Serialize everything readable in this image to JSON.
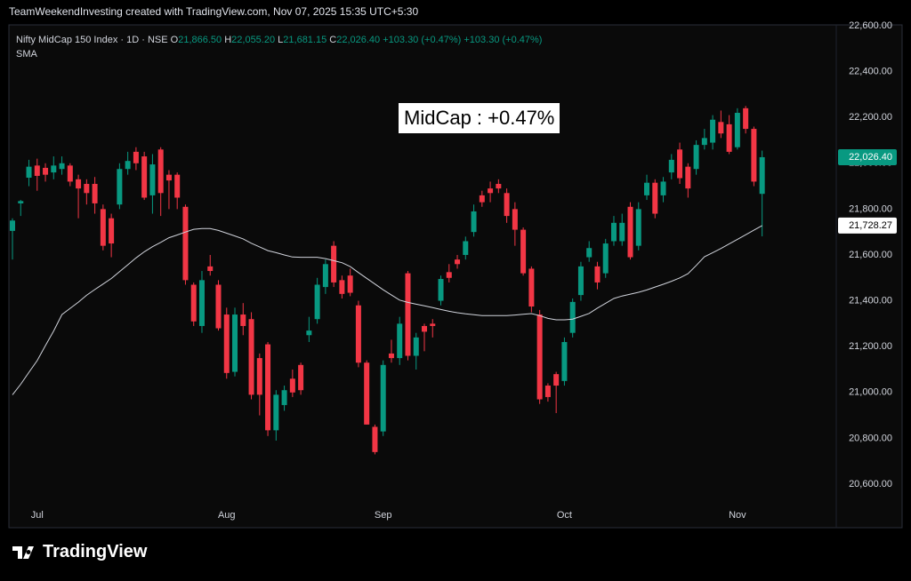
{
  "header": "TeamWeekendInvesting created with TradingView.com, Nov 07, 2025 15:35 UTC+5:30",
  "footer_logo": "TradingView",
  "chart_data": {
    "type": "candlestick",
    "annotation": "MidCap : +0.47%",
    "legend_values": [
      {
        "key": "O",
        "value": "21,866.50"
      },
      {
        "key": "H",
        "value": "22,055.20"
      },
      {
        "key": "L",
        "value": "21,681.15"
      },
      {
        "key": "C",
        "value": "22,026.40"
      }
    ],
    "changes": [
      "+103.30 (+0.47%)",
      "+103.30 (+0.47%)"
    ],
    "categories": [
      null,
      null,
      null,
      "Jul",
      null,
      null,
      null,
      null,
      null,
      null,
      null,
      null,
      null,
      null,
      null,
      null,
      null,
      null,
      null,
      null,
      null,
      null,
      null,
      null,
      null,
      null,
      "Aug",
      null,
      null,
      null,
      null,
      null,
      null,
      null,
      null,
      null,
      null,
      null,
      null,
      null,
      null,
      null,
      null,
      null,
      null,
      "Sep",
      null,
      null,
      null,
      null,
      null,
      null,
      null,
      null,
      null,
      null,
      null,
      null,
      null,
      null,
      null,
      null,
      null,
      null,
      null,
      null,
      null,
      "Oct",
      null,
      null,
      null,
      null,
      null,
      null,
      null,
      null,
      null,
      null,
      null,
      null,
      null,
      null,
      null,
      null,
      null,
      null,
      null,
      null,
      "Nov",
      null,
      null,
      null
    ],
    "series": [
      {
        "name": "Nifty MidCap 150 Index · 1D · NSE",
        "type": "candlestick",
        "up_color": "#089981",
        "down_color": "#f23645",
        "open": [
          21705,
          21825,
          21937,
          21990,
          21980,
          21960,
          21975,
          21990,
          21930,
          21910,
          21910,
          21800,
          21760,
          21820,
          21975,
          22050,
          22030,
          21860,
          22060,
          21950,
          21950,
          21810,
          21470,
          21290,
          21550,
          21470,
          21340,
          21090,
          21340,
          21320,
          21150,
          21210,
          20835,
          20945,
          21060,
          21120,
          21250,
          21320,
          21460,
          21640,
          21490,
          21510,
          21380,
          21130,
          20850,
          20830,
          21170,
          21150,
          21520,
          21160,
          21290,
          21300,
          21400,
          21525,
          21580,
          21600,
          21700,
          21860,
          21890,
          21910,
          21870,
          21800,
          21710,
          21540,
          21340,
          21030,
          21080,
          21050,
          21260,
          21425,
          21590,
          21550,
          21520,
          21660,
          21660,
          21810,
          21640,
          21860,
          21915,
          21860,
          21960,
          22060,
          21985,
          21975,
          22080,
          22090,
          22180,
          22170,
          22070,
          22240,
          22150,
          21866.5
        ],
        "high": [
          21760,
          21840,
          22015,
          22020,
          22000,
          22030,
          22030,
          22000,
          21950,
          21930,
          21940,
          21820,
          21780,
          22000,
          22050,
          22070,
          22050,
          22040,
          22070,
          21970,
          21960,
          21820,
          21480,
          21530,
          21600,
          21490,
          21370,
          21370,
          21390,
          21350,
          21170,
          21220,
          21010,
          21030,
          21100,
          21130,
          21330,
          21500,
          21580,
          21660,
          21510,
          21540,
          21400,
          21140,
          20860,
          21140,
          21230,
          21330,
          21530,
          21260,
          21300,
          21320,
          21510,
          21560,
          21600,
          21680,
          21820,
          21880,
          21920,
          21930,
          21890,
          21830,
          21720,
          21550,
          21360,
          21040,
          21090,
          21240,
          21410,
          21570,
          21660,
          21570,
          21670,
          21770,
          21780,
          21830,
          21830,
          21950,
          21930,
          21940,
          22040,
          22090,
          22000,
          22100,
          22150,
          22210,
          22230,
          22210,
          22240,
          22250,
          22160,
          22055.2
        ],
        "low": [
          21580,
          21770,
          21900,
          21880,
          21920,
          21930,
          21950,
          21900,
          21760,
          21820,
          21780,
          21620,
          21590,
          21800,
          21950,
          21970,
          21840,
          21780,
          21770,
          21800,
          21800,
          21470,
          21290,
          21260,
          21510,
          21270,
          21060,
          21070,
          21250,
          20970,
          20900,
          20810,
          20790,
          20920,
          20980,
          20990,
          21220,
          21300,
          21430,
          21460,
          21410,
          21420,
          21110,
          20860,
          20730,
          20810,
          21130,
          21120,
          21140,
          21100,
          21180,
          21240,
          21380,
          21480,
          21540,
          21580,
          21680,
          21810,
          21830,
          21870,
          21740,
          21640,
          21510,
          21350,
          20950,
          20960,
          20910,
          21030,
          21240,
          21400,
          21570,
          21450,
          21500,
          21640,
          21640,
          21580,
          21620,
          21840,
          21760,
          21830,
          21930,
          21910,
          21850,
          21950,
          22060,
          22060,
          22110,
          22040,
          22060,
          22130,
          21900,
          21681.15
        ],
        "close": [
          21750,
          21835,
          21985,
          21945,
          21950,
          21990,
          22000,
          21920,
          21890,
          21870,
          21825,
          21640,
          21650,
          21975,
          22010,
          22000,
          21850,
          21995,
          21870,
          21925,
          21850,
          21490,
          21310,
          21490,
          21530,
          21280,
          21085,
          21340,
          21290,
          20990,
          20990,
          20835,
          20990,
          21010,
          21000,
          21010,
          21270,
          21470,
          21560,
          21480,
          21430,
          21435,
          21130,
          20860,
          20740,
          21120,
          21150,
          21300,
          21160,
          21240,
          21265,
          21290,
          21495,
          21500,
          21560,
          21660,
          21790,
          21830,
          21870,
          21890,
          21770,
          21710,
          21520,
          21375,
          20970,
          20980,
          21030,
          21220,
          21395,
          21550,
          21630,
          21480,
          21650,
          21740,
          21740,
          21590,
          21800,
          21915,
          21780,
          21920,
          22015,
          21935,
          21890,
          22080,
          22110,
          22190,
          22130,
          22050,
          22220,
          22150,
          21920,
          22026.4
        ]
      },
      {
        "name": "SMA",
        "type": "line",
        "color": "#d1d4dc",
        "values": [
          20990,
          21036,
          21088,
          21139,
          21204,
          21268,
          21340,
          21367,
          21394,
          21424,
          21449,
          21473,
          21497,
          21527,
          21557,
          21587,
          21614,
          21636,
          21655,
          21675,
          21687,
          21700,
          21712,
          21715,
          21715,
          21707,
          21695,
          21683,
          21670,
          21651,
          21635,
          21619,
          21610,
          21600,
          21591,
          21590,
          21590,
          21590,
          21584,
          21575,
          21566,
          21549,
          21523,
          21498,
          21473,
          21448,
          21425,
          21403,
          21393,
          21385,
          21378,
          21370,
          21362,
          21354,
          21348,
          21343,
          21339,
          21335,
          21335,
          21335,
          21335,
          21338,
          21341,
          21344,
          21335,
          21323,
          21317,
          21317,
          21320,
          21332,
          21345,
          21368,
          21389,
          21410,
          21421,
          21429,
          21437,
          21447,
          21460,
          21472,
          21485,
          21500,
          21518,
          21554,
          21592,
          21610,
          21628,
          21648,
          21668,
          21688,
          21708,
          21728.27
        ]
      }
    ],
    "price_tags": [
      {
        "value": 22026.4,
        "label": "22,026.40",
        "color": "#089981"
      },
      {
        "value": 21728.27,
        "label": "21,728.27",
        "color": "#ffffff"
      }
    ],
    "ylim": [
      20410,
      22627
    ],
    "yticks": [
      {
        "value": 20600,
        "label": "20,600.00"
      },
      {
        "value": 20800,
        "label": "20,800.00"
      },
      {
        "value": 21000,
        "label": "21,000.00"
      },
      {
        "value": 21200,
        "label": "21,200.00"
      },
      {
        "value": 21400,
        "label": "21,400.00"
      },
      {
        "value": 21600,
        "label": "21,600.00"
      },
      {
        "value": 21800,
        "label": "21,800.00"
      },
      {
        "value": 22000,
        "label": "22,000.00"
      },
      {
        "value": 22200,
        "label": "22,200.00"
      },
      {
        "value": 22400,
        "label": "22,400.00"
      },
      {
        "value": 22600,
        "label": "22,600.00"
      }
    ],
    "grid": false
  }
}
